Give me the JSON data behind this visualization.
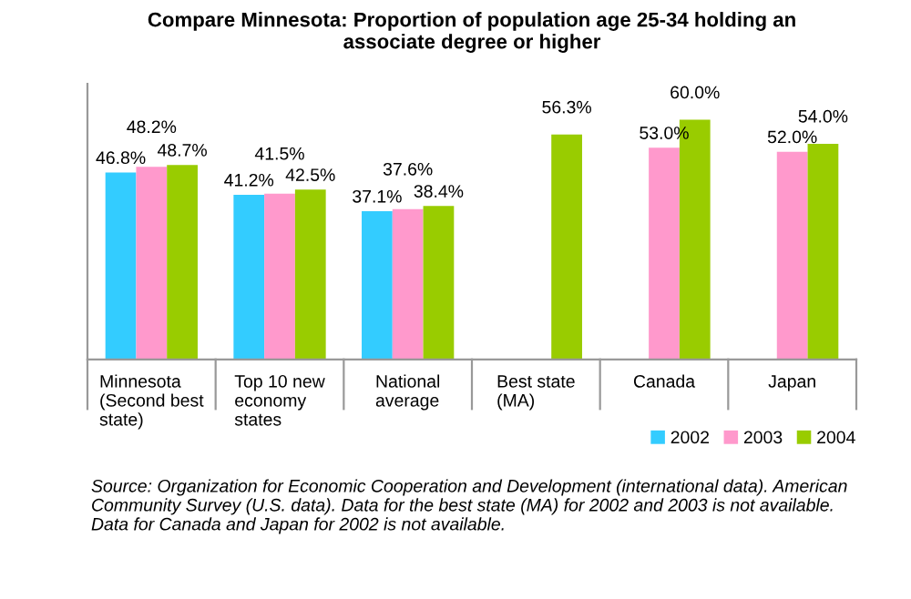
{
  "chart_data": {
    "type": "bar",
    "title": "Compare Minnesota: Proportion of population age 25-34 holding an\nassociate degree or higher",
    "categories": [
      "Minnesota\n(Second best\nstate)",
      "Top 10 new\neconomy\nstates",
      "National\naverage",
      "Best state\n(MA)",
      "Canada",
      "Japan"
    ],
    "series": [
      {
        "name": "2002",
        "color": "#33ccff",
        "values": [
          46.8,
          41.2,
          37.1,
          null,
          null,
          null
        ],
        "value_labels": [
          "46.8%",
          "41.2%",
          "37.1%",
          null,
          null,
          null
        ]
      },
      {
        "name": "2003",
        "color": "#ff99cc",
        "values": [
          48.2,
          41.5,
          37.6,
          null,
          53.0,
          52.0
        ],
        "value_labels": [
          "48.2%",
          "41.5%",
          "37.6%",
          null,
          "53.0%",
          "52.0%"
        ]
      },
      {
        "name": "2004",
        "color": "#99cc00",
        "values": [
          48.7,
          42.5,
          38.4,
          56.3,
          60.0,
          54.0
        ],
        "value_labels": [
          "48.7%",
          "42.5%",
          "38.4%",
          "56.3%",
          "60.0%",
          "54.0%"
        ]
      }
    ],
    "grid": false,
    "legend": "bottom right",
    "annotations": [
      "Source: Organization for Economic Cooperation and Development (international data). American Community Survey (U.S. data). Data for the best state (MA) for 2002 and 2003 is not available. Data for Canada and Japan for 2002 is not available."
    ]
  }
}
